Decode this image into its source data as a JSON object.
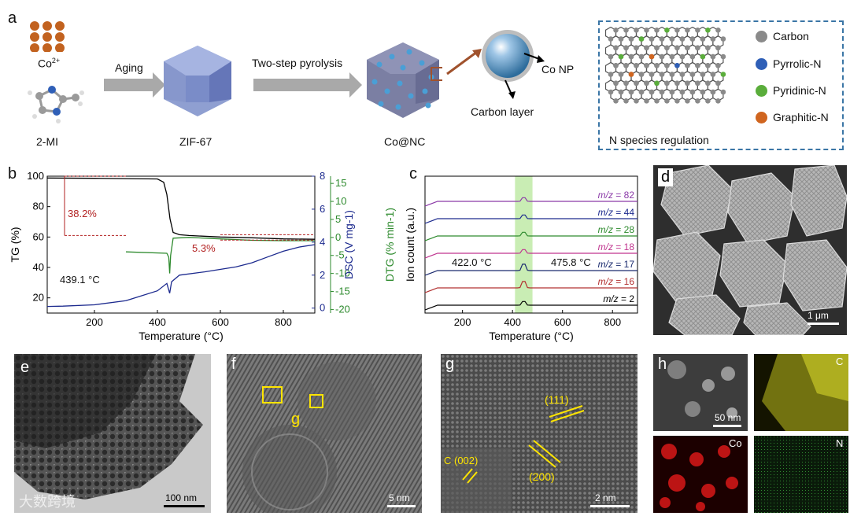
{
  "panel_a": {
    "letter": "a",
    "co_label": "Co",
    "co_sup": "2+",
    "mi_label": "2-MI",
    "aging": "Aging",
    "zif": "ZIF-67",
    "pyrolysis": "Two-step pyrolysis",
    "conc": "Co@NC",
    "co_np": "Co NP",
    "carbon_layer": "Carbon layer",
    "legend": [
      {
        "label": "Carbon",
        "color": "#8a8a8a"
      },
      {
        "label": "Pyrrolic-N",
        "color": "#2f5fb7"
      },
      {
        "label": "Pyridinic-N",
        "color": "#5aad3b"
      },
      {
        "label": "Graphitic-N",
        "color": "#d0651f"
      }
    ],
    "n_species": "N species regulation"
  },
  "panel_b": {
    "letter": "b",
    "ann_382": "38.2%",
    "ann_53": "5.3%",
    "ann_temp": "439.1 °C",
    "chart_data": {
      "type": "line",
      "xlabel": "Temperature (°C)",
      "ylabel_left": "TG (%)",
      "ylabel_dsc": "DSC (V mg",
      "ylabel_dsc_sup": "-1",
      "ylabel_dtg": "DTG (% min",
      "ylabel_dtg_sup": "-1",
      "xlim": [
        50,
        900
      ],
      "x_ticks": [
        200,
        400,
        600,
        800
      ],
      "tg_ticks": [
        20,
        40,
        60,
        80,
        100
      ],
      "dsc_ticks": [
        0,
        2,
        4,
        6,
        8
      ],
      "dtg_ticks": [
        15,
        10,
        5,
        0,
        -5,
        -10,
        -15,
        -20
      ],
      "series": [
        {
          "name": "TG",
          "color": "#000000",
          "x": [
            50,
            200,
            400,
            420,
            430,
            440,
            450,
            470,
            500,
            600,
            700,
            800,
            900
          ],
          "y": [
            98.8,
            98.6,
            98.2,
            96,
            88,
            72,
            63,
            61.5,
            61,
            60,
            59.5,
            58.8,
            58.5
          ]
        },
        {
          "name": "DSC",
          "color": "#1c2a8e",
          "x": [
            50,
            100,
            200,
            300,
            400,
            430,
            439,
            445,
            470,
            550,
            650,
            700,
            750,
            800,
            850,
            900
          ],
          "y": [
            0.1,
            0.12,
            0.2,
            0.45,
            1.05,
            1.5,
            0.9,
            1.6,
            2.0,
            2.2,
            2.5,
            2.75,
            3.1,
            3.45,
            3.7,
            3.85
          ]
        },
        {
          "name": "DTG",
          "color": "#2d8a2d",
          "x": [
            300,
            430,
            436,
            439,
            442,
            450,
            500,
            600,
            700,
            800,
            900
          ],
          "y": [
            -4,
            -4.4,
            -5.5,
            -10,
            -5,
            -0.2,
            0,
            -0.4,
            -0.8,
            -0.9,
            -0.9
          ]
        }
      ]
    }
  },
  "panel_c": {
    "letter": "c",
    "ann_422": "422.0 °C",
    "ann_4758": "475.8 °C",
    "chart_data": {
      "type": "line",
      "xlabel": "Temperature (°C)",
      "ylabel": "Ion count (a.u.)",
      "xlim": [
        50,
        900
      ],
      "x_ticks": [
        200,
        400,
        600,
        800
      ],
      "highlight_x": [
        410,
        480
      ],
      "series": [
        {
          "name": "m/z = 82",
          "color": "#8b3aa8",
          "baseline": 6
        },
        {
          "name": "m/z = 44",
          "color": "#1c2a8e",
          "baseline": 5
        },
        {
          "name": "m/z = 28",
          "color": "#2d8a2d",
          "baseline": 4
        },
        {
          "name": "m/z = 18",
          "color": "#c0348f",
          "baseline": 3
        },
        {
          "name": "m/z = 17",
          "color": "#1a2a6e",
          "baseline": 2
        },
        {
          "name": "m/z = 16",
          "color": "#b23030",
          "baseline": 1
        },
        {
          "name": "m/z = 2",
          "color": "#000000",
          "baseline": 0
        }
      ],
      "mz_prefix": "m/z",
      "mz_values": [
        "= 82",
        "= 44",
        "= 28",
        "= 18",
        "= 17",
        "= 16",
        "= 2"
      ]
    }
  },
  "panel_d": {
    "letter": "d",
    "scale": "1 μm"
  },
  "panel_e": {
    "letter": "e",
    "scale": "100 nm",
    "watermark": "大数跨境"
  },
  "panel_f": {
    "letter": "f",
    "scale": "5 nm",
    "g_label": "g"
  },
  "panel_g": {
    "letter": "g",
    "scale": "2 nm",
    "l111": "(111)",
    "l200": "(200)",
    "c002": "C (002)"
  },
  "panel_h": {
    "letter": "h",
    "scale": "50 nm",
    "c": "C",
    "co": "Co",
    "n": "N"
  }
}
